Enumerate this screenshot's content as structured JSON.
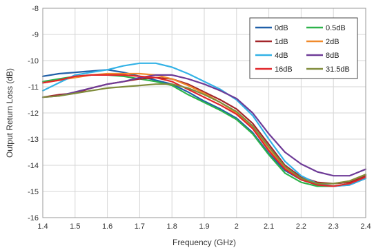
{
  "chart_data": {
    "type": "line",
    "xlabel": "Frequency (GHz)",
    "ylabel": "Output Return Loss (dB)",
    "xlim": [
      1.4,
      2.4
    ],
    "ylim": [
      -16,
      -8
    ],
    "xticks": [
      1.4,
      1.5,
      1.6,
      1.7,
      1.8,
      1.9,
      2.0,
      2.1,
      2.2,
      2.3,
      2.4
    ],
    "xtick_labels": [
      "1.4",
      "1.5",
      "1.6",
      "1.7",
      "1.8",
      "1.9",
      "2",
      "2.1",
      "2.2",
      "2.3",
      "2.4"
    ],
    "yticks": [
      -16,
      -15,
      -14,
      -13,
      -12,
      -11,
      -10,
      -9,
      -8
    ],
    "ytick_labels": [
      "-16",
      "-15",
      "-14",
      "-13",
      "-12",
      "-11",
      "-10",
      "-9",
      "-8"
    ],
    "grid": true,
    "legend_position": "top-right",
    "x": [
      1.4,
      1.45,
      1.5,
      1.55,
      1.6,
      1.65,
      1.7,
      1.75,
      1.8,
      1.85,
      1.9,
      1.95,
      2.0,
      2.05,
      2.1,
      2.15,
      2.2,
      2.25,
      2.3,
      2.35,
      2.4
    ],
    "series": [
      {
        "name": "0dB",
        "color": "#1f5fa8",
        "values": [
          -10.6,
          -10.5,
          -10.45,
          -10.4,
          -10.35,
          -10.45,
          -10.6,
          -10.75,
          -10.9,
          -11.2,
          -11.55,
          -11.85,
          -12.2,
          -12.75,
          -13.55,
          -14.2,
          -14.55,
          -14.75,
          -14.8,
          -14.75,
          -14.5
        ]
      },
      {
        "name": "0.5dB",
        "color": "#2db34a",
        "values": [
          -10.8,
          -10.7,
          -10.6,
          -10.55,
          -10.55,
          -10.6,
          -10.7,
          -10.8,
          -10.95,
          -11.3,
          -11.6,
          -11.9,
          -12.25,
          -12.8,
          -13.6,
          -14.3,
          -14.65,
          -14.8,
          -14.8,
          -14.7,
          -14.4
        ]
      },
      {
        "name": "1dB",
        "color": "#a3262a",
        "values": [
          -11.4,
          -11.3,
          -11.25,
          -11.05,
          -10.9,
          -10.8,
          -10.7,
          -10.65,
          -10.7,
          -10.9,
          -11.2,
          -11.5,
          -11.85,
          -12.4,
          -13.2,
          -14.0,
          -14.45,
          -14.65,
          -14.7,
          -14.65,
          -14.4
        ]
      },
      {
        "name": "2dB",
        "color": "#f08a2c",
        "values": [
          -10.85,
          -10.75,
          -10.65,
          -10.55,
          -10.5,
          -10.5,
          -10.5,
          -10.55,
          -10.7,
          -10.95,
          -11.25,
          -11.6,
          -12.0,
          -12.55,
          -13.4,
          -14.1,
          -14.5,
          -14.7,
          -14.7,
          -14.6,
          -14.35
        ]
      },
      {
        "name": "4dB",
        "color": "#33b2e6",
        "values": [
          -11.15,
          -10.85,
          -10.55,
          -10.45,
          -10.35,
          -10.2,
          -10.1,
          -10.1,
          -10.25,
          -10.5,
          -10.8,
          -11.1,
          -11.5,
          -12.1,
          -13.0,
          -13.85,
          -14.4,
          -14.7,
          -14.8,
          -14.75,
          -14.5
        ]
      },
      {
        "name": "8dB",
        "color": "#6e3b97",
        "values": [
          -11.4,
          -11.35,
          -11.2,
          -11.05,
          -10.9,
          -10.8,
          -10.65,
          -10.55,
          -10.55,
          -10.7,
          -10.9,
          -11.15,
          -11.45,
          -12.0,
          -12.8,
          -13.5,
          -13.95,
          -14.25,
          -14.4,
          -14.4,
          -14.15
        ]
      },
      {
        "name": "16dB",
        "color": "#e1262a",
        "values": [
          -10.85,
          -10.75,
          -10.6,
          -10.55,
          -10.55,
          -10.55,
          -10.6,
          -10.65,
          -10.8,
          -11.1,
          -11.4,
          -11.7,
          -12.05,
          -12.6,
          -13.45,
          -14.15,
          -14.55,
          -14.75,
          -14.8,
          -14.7,
          -14.45
        ]
      },
      {
        "name": "31.5dB",
        "color": "#808c3b",
        "values": [
          -11.4,
          -11.35,
          -11.25,
          -11.15,
          -11.05,
          -11.0,
          -10.95,
          -10.9,
          -10.9,
          -11.05,
          -11.3,
          -11.6,
          -11.95,
          -12.5,
          -13.3,
          -14.05,
          -14.5,
          -14.7,
          -14.7,
          -14.6,
          -14.35
        ]
      }
    ]
  }
}
